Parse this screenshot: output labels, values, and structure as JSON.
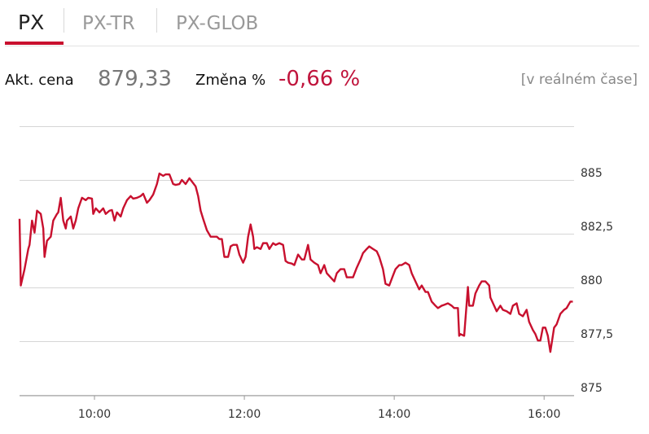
{
  "tabs": [
    "PX",
    "PX-TR",
    "PX-GLOB"
  ],
  "active_tab": 0,
  "quote": {
    "price_label": "Akt. cena",
    "price": "879,33",
    "change_label": "Změna %",
    "change": "-0,66 %",
    "status": "[v reálném čase]"
  },
  "chart_data": {
    "type": "line",
    "color": "#c8102e",
    "x": [
      540,
      541,
      544,
      547,
      548,
      550,
      552,
      554,
      557,
      559,
      560,
      562,
      565,
      567,
      570,
      571,
      573,
      575,
      577,
      578,
      581,
      583,
      585,
      587,
      590,
      593,
      595,
      598,
      599,
      601,
      604,
      607,
      609,
      612,
      614,
      616,
      618,
      621,
      623,
      626,
      629,
      631,
      634,
      637,
      639,
      642,
      644,
      647,
      650,
      652,
      655,
      657,
      660,
      663,
      665,
      668,
      670,
      673,
      676,
      678,
      681,
      683,
      685,
      687,
      690,
      693,
      695,
      698,
      700,
      702,
      704,
      707,
      709,
      711,
      714,
      716,
      719,
      721,
      723,
      725,
      727,
      728,
      730,
      733,
      735,
      738,
      740,
      743,
      745,
      748,
      751,
      753,
      755,
      758,
      760,
      763,
      766,
      768,
      771,
      773,
      776,
      779,
      781,
      784,
      786,
      789,
      792,
      794,
      797,
      800,
      802,
      805,
      807,
      810,
      813,
      815,
      818,
      820,
      823,
      826,
      828,
      831,
      833,
      836,
      839,
      841,
      844,
      846,
      849,
      852,
      854,
      857,
      860,
      862,
      865,
      867,
      870,
      873,
      875,
      878,
      880,
      883,
      886,
      888,
      891,
      892,
      893,
      896,
      899,
      900,
      903,
      905,
      908,
      910,
      913,
      916,
      917,
      920,
      922,
      925,
      927,
      930,
      933,
      935,
      938,
      940,
      943,
      946,
      948,
      951,
      953,
      955,
      957,
      959,
      961,
      963,
      965,
      968,
      970,
      973,
      976,
      978,
      981,
      983
    ],
    "values": [
      883.19,
      880.09,
      880.85,
      881.79,
      881.98,
      883.11,
      882.55,
      883.57,
      883.42,
      882.74,
      881.42,
      882.17,
      882.36,
      883.11,
      883.42,
      883.49,
      884.17,
      883.11,
      882.74,
      883.11,
      883.3,
      882.74,
      883.11,
      883.68,
      884.17,
      884.06,
      884.17,
      884.13,
      883.42,
      883.68,
      883.49,
      883.68,
      883.42,
      883.57,
      883.6,
      883.11,
      883.49,
      883.3,
      883.68,
      884.06,
      884.25,
      884.13,
      884.17,
      884.25,
      884.36,
      883.94,
      884.06,
      884.32,
      884.81,
      885.3,
      885.19,
      885.26,
      885.26,
      884.81,
      884.77,
      884.81,
      885.0,
      884.81,
      885.08,
      884.93,
      884.7,
      884.25,
      883.57,
      883.19,
      882.66,
      882.36,
      882.36,
      882.36,
      882.25,
      882.25,
      881.42,
      881.42,
      881.91,
      881.98,
      881.98,
      881.53,
      881.15,
      881.42,
      882.36,
      882.93,
      882.36,
      881.79,
      881.87,
      881.79,
      882.06,
      882.06,
      881.79,
      882.06,
      881.98,
      882.06,
      881.98,
      881.23,
      881.15,
      881.11,
      881.04,
      881.53,
      881.3,
      881.3,
      881.98,
      881.3,
      881.15,
      881.04,
      880.66,
      881.04,
      880.66,
      880.47,
      880.28,
      880.66,
      880.85,
      880.85,
      880.47,
      880.47,
      880.47,
      880.92,
      881.3,
      881.6,
      881.79,
      881.91,
      881.79,
      881.68,
      881.42,
      880.85,
      880.17,
      880.09,
      880.55,
      880.85,
      881.04,
      881.04,
      881.15,
      881.04,
      880.66,
      880.28,
      879.91,
      880.09,
      879.79,
      879.79,
      879.34,
      879.15,
      879.04,
      879.15,
      879.19,
      879.26,
      879.15,
      879.04,
      879.04,
      877.75,
      877.83,
      877.75,
      880.02,
      879.15,
      879.15,
      879.72,
      880.09,
      880.28,
      880.28,
      880.09,
      879.53,
      879.15,
      878.89,
      879.15,
      878.96,
      878.89,
      878.77,
      879.15,
      879.26,
      878.77,
      878.66,
      878.96,
      878.4,
      878.02,
      877.83,
      877.53,
      877.53,
      878.13,
      878.13,
      877.75,
      877.0,
      878.13,
      878.28,
      878.77,
      878.96,
      879.04,
      879.34,
      879.34
    ],
    "xlim": [
      540,
      984
    ],
    "ylim": [
      875,
      887.5
    ],
    "xticks": [
      {
        "value": 600,
        "label": "10:00"
      },
      {
        "value": 720,
        "label": "12:00"
      },
      {
        "value": 840,
        "label": "14:00"
      },
      {
        "value": 960,
        "label": "16:00"
      }
    ],
    "yticks": [
      875,
      {
        "value": 877.5,
        "label": "877,5"
      },
      880,
      {
        "value": 882.5,
        "label": "882,5"
      },
      885
    ],
    "grid": true
  }
}
